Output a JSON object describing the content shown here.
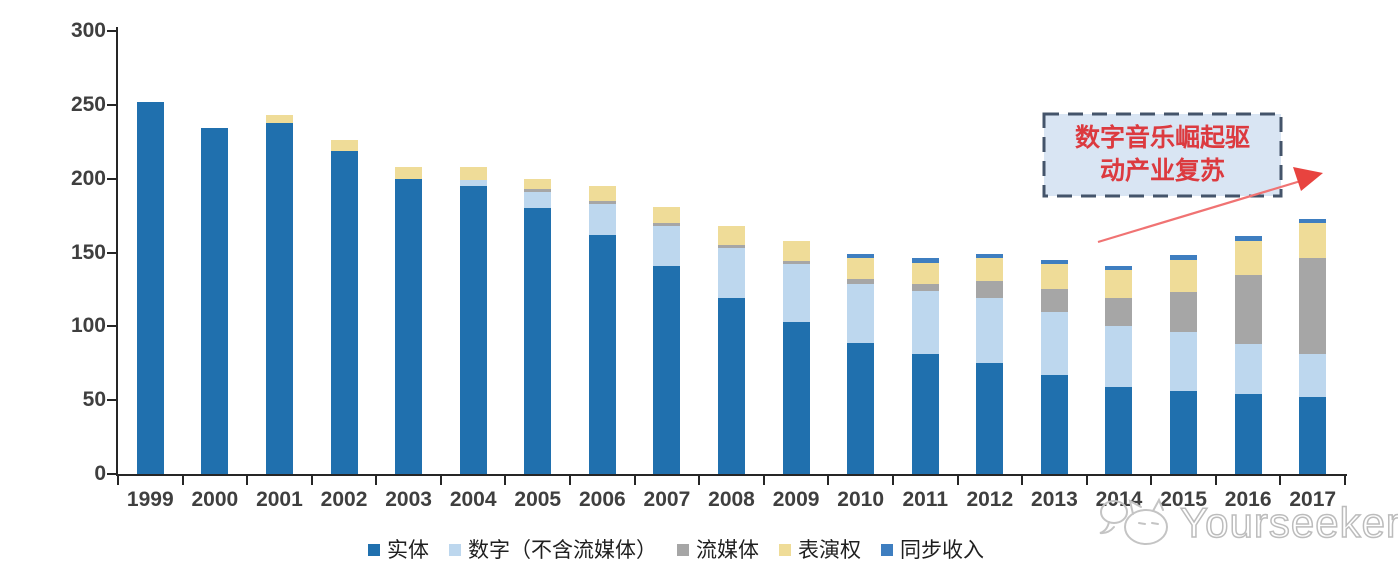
{
  "chart_data": {
    "type": "bar",
    "stacked": true,
    "categories": [
      "1999",
      "2000",
      "2001",
      "2002",
      "2003",
      "2004",
      "2005",
      "2006",
      "2007",
      "2008",
      "2009",
      "2010",
      "2011",
      "2012",
      "2013",
      "2014",
      "2015",
      "2016",
      "2017"
    ],
    "series": [
      {
        "name": "实体",
        "color": "#2070AE",
        "values": [
          252,
          234,
          238,
          219,
          200,
          195,
          180,
          162,
          141,
          119,
          103,
          89,
          81,
          75,
          67,
          59,
          56,
          54,
          52
        ]
      },
      {
        "name": "数字（不含流媒体）",
        "color": "#BDD7EE",
        "values": [
          0,
          0,
          0,
          0,
          0,
          4,
          11,
          21,
          27,
          34,
          39,
          40,
          43,
          44,
          43,
          41,
          40,
          34,
          29
        ]
      },
      {
        "name": "流媒体",
        "color": "#A6A6A6",
        "values": [
          0,
          0,
          0,
          0,
          0,
          0,
          2,
          2,
          2,
          2,
          2,
          3,
          5,
          12,
          15,
          19,
          27,
          47,
          65
        ]
      },
      {
        "name": "表演权",
        "color": "#EFDC98",
        "values": [
          0,
          0,
          5,
          7,
          8,
          9,
          7,
          10,
          11,
          13,
          14,
          14,
          14,
          15,
          17,
          19,
          22,
          23,
          24
        ]
      },
      {
        "name": "同步收入",
        "color": "#3E7EC0",
        "values": [
          0,
          0,
          0,
          0,
          0,
          0,
          0,
          0,
          0,
          0,
          0,
          3,
          3,
          3,
          3,
          3,
          3,
          3,
          3
        ]
      }
    ],
    "ylim": [
      0,
      300
    ],
    "yticks": [
      0,
      50,
      100,
      150,
      200,
      250,
      300
    ],
    "grid": false,
    "legend_position": "bottom"
  },
  "annotation": {
    "line1": "数字音乐崛起驱",
    "line2": "动产业复苏"
  },
  "watermark": {
    "text": "Yourseeker"
  },
  "colors": {
    "axis": "#262626",
    "tick_label": "#3F3F3F",
    "annotation_fill": "#D9E5F3",
    "annotation_border": "#44546A",
    "annotation_text": "#DC3A3F",
    "arrow_line": "#F07373",
    "arrow_head": "#E8433F",
    "watermark": "#BCBCBC"
  }
}
